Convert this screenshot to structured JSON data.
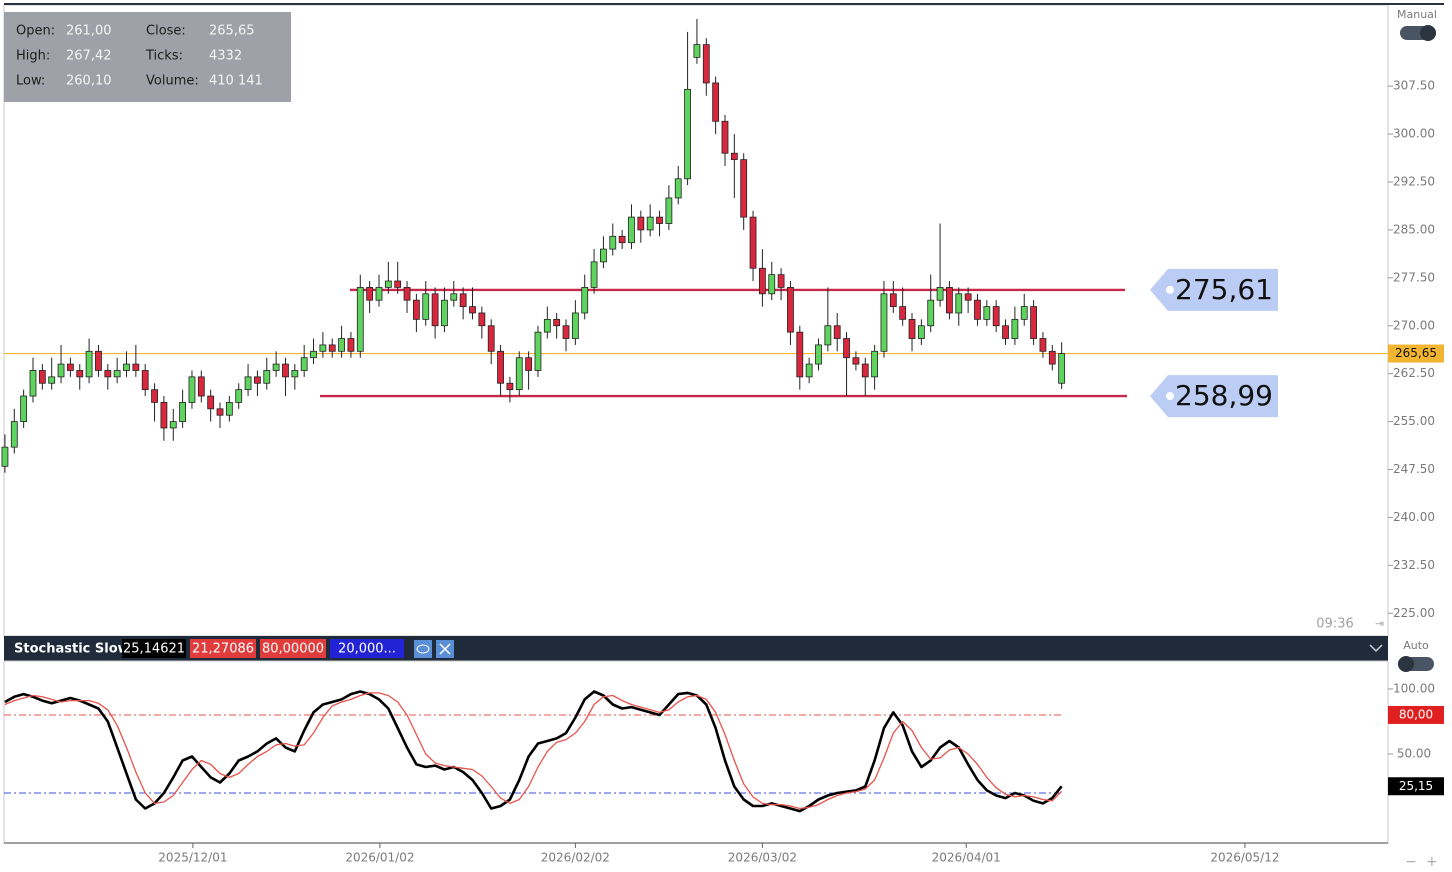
{
  "info": [
    {
      "label": "Open:",
      "value": "261,00"
    },
    {
      "label": "High:",
      "value": "267,42"
    },
    {
      "label": "Low:",
      "value": "260,10"
    },
    {
      "label": "Close:",
      "value": "265,65"
    },
    {
      "label": "Ticks:",
      "value": "4332"
    },
    {
      "label": "Volume:",
      "value": "410 141"
    }
  ],
  "price_mode": "Manual",
  "indicator_mode": "Auto",
  "time_label": "09:36",
  "chart_data": [
    {
      "type": "candlestick",
      "up_color": "#5ed35e",
      "down_color": "#d9283e",
      "xlim": [
        -0.1,
        147.9
      ],
      "ylim": [
        221.6,
        320.2
      ],
      "yticks": [
        {
          "value": 225,
          "label": "225.00"
        },
        {
          "value": 232.5,
          "label": "232.50"
        },
        {
          "value": 240,
          "label": "240.00"
        },
        {
          "value": 247.5,
          "label": "247.50"
        },
        {
          "value": 255,
          "label": "255.00"
        },
        {
          "value": 262.5,
          "label": "262.50"
        },
        {
          "value": 270,
          "label": "270.00"
        },
        {
          "value": 277.5,
          "label": "277.50"
        },
        {
          "value": 285,
          "label": "285.00"
        },
        {
          "value": 292.5,
          "label": "292.50"
        },
        {
          "value": 300,
          "label": "300.00"
        },
        {
          "value": 307.5,
          "label": "307.50"
        }
      ],
      "levels": [
        {
          "value": 275.61,
          "label": "275,61",
          "color": "#c8284a"
        },
        {
          "value": 258.99,
          "label": "258,99",
          "color": "#c8284a"
        }
      ],
      "last_price": {
        "value": 265.65,
        "label": "265,65",
        "color": "#f2b531"
      },
      "candles": [
        [
          248,
          253,
          247,
          251
        ],
        [
          251,
          257,
          250,
          255
        ],
        [
          255,
          260,
          254,
          259
        ],
        [
          259,
          265,
          258,
          263
        ],
        [
          263,
          264,
          260,
          261
        ],
        [
          261,
          265,
          260,
          262
        ],
        [
          262,
          267,
          261,
          264
        ],
        [
          264,
          265,
          262,
          263
        ],
        [
          263,
          264,
          260,
          262
        ],
        [
          262,
          268,
          261,
          266
        ],
        [
          266,
          267,
          262,
          263
        ],
        [
          263,
          264,
          260,
          262
        ],
        [
          262,
          265,
          261,
          263
        ],
        [
          263,
          266,
          262,
          264
        ],
        [
          264,
          267,
          262,
          263
        ],
        [
          263,
          264,
          259,
          260
        ],
        [
          260,
          261,
          255,
          258
        ],
        [
          258,
          259,
          252,
          254
        ],
        [
          254,
          257,
          252,
          255
        ],
        [
          255,
          260,
          254,
          258
        ],
        [
          258,
          263,
          257,
          262
        ],
        [
          262,
          263,
          258,
          259
        ],
        [
          259,
          260,
          255,
          257
        ],
        [
          257,
          258,
          254,
          256
        ],
        [
          256,
          259,
          255,
          258
        ],
        [
          258,
          261,
          257,
          260
        ],
        [
          260,
          264,
          259,
          262
        ],
        [
          262,
          263,
          259,
          261
        ],
        [
          261,
          265,
          260,
          263
        ],
        [
          263,
          266,
          262,
          264
        ],
        [
          264,
          265,
          259,
          262
        ],
        [
          262,
          264,
          260,
          263
        ],
        [
          263,
          267,
          262,
          265
        ],
        [
          265,
          268,
          264,
          266
        ],
        [
          266,
          269,
          265,
          267
        ],
        [
          267,
          268,
          265,
          266
        ],
        [
          266,
          270,
          265,
          268
        ],
        [
          268,
          269,
          265,
          266
        ],
        [
          266,
          278,
          265,
          276
        ],
        [
          276,
          277,
          272,
          274
        ],
        [
          274,
          278,
          273,
          276
        ],
        [
          276,
          280,
          275,
          277
        ],
        [
          277,
          280,
          275,
          276
        ],
        [
          276,
          277,
          272,
          274
        ],
        [
          274,
          275,
          269,
          271
        ],
        [
          271,
          277,
          270,
          275
        ],
        [
          275,
          276,
          268,
          270
        ],
        [
          270,
          276,
          269,
          274
        ],
        [
          274,
          277,
          273,
          275
        ],
        [
          275,
          276,
          271,
          273
        ],
        [
          273,
          276,
          271,
          272
        ],
        [
          272,
          273,
          268,
          270
        ],
        [
          270,
          271,
          264,
          266
        ],
        [
          266,
          267,
          259,
          261
        ],
        [
          261,
          262,
          258,
          260
        ],
        [
          260,
          266,
          259,
          265
        ],
        [
          265,
          266,
          260,
          263
        ],
        [
          263,
          270,
          262,
          269
        ],
        [
          269,
          273,
          268,
          271
        ],
        [
          271,
          272,
          268,
          270
        ],
        [
          270,
          271,
          266,
          268
        ],
        [
          268,
          274,
          267,
          272
        ],
        [
          272,
          278,
          271,
          276
        ],
        [
          276,
          282,
          275,
          280
        ],
        [
          280,
          284,
          279,
          282
        ],
        [
          282,
          286,
          281,
          284
        ],
        [
          284,
          285,
          282,
          283
        ],
        [
          283,
          289,
          282,
          287
        ],
        [
          287,
          288,
          283,
          285
        ],
        [
          285,
          289,
          284,
          287
        ],
        [
          287,
          288,
          284,
          286
        ],
        [
          286,
          292,
          285,
          290
        ],
        [
          290,
          295,
          289,
          293
        ],
        [
          293,
          316,
          292,
          307
        ],
        [
          312,
          318,
          311,
          314
        ],
        [
          314,
          315,
          306,
          308
        ],
        [
          308,
          309,
          300,
          302
        ],
        [
          302,
          303,
          295,
          297
        ],
        [
          297,
          300,
          290,
          296
        ],
        [
          296,
          297,
          285,
          287
        ],
        [
          287,
          288,
          277,
          279
        ],
        [
          279,
          282,
          273,
          275
        ],
        [
          275,
          280,
          274,
          278
        ],
        [
          278,
          279,
          274,
          276
        ],
        [
          276,
          277,
          267,
          269
        ],
        [
          269,
          270,
          260,
          262
        ],
        [
          262,
          265,
          261,
          264
        ],
        [
          264,
          268,
          263,
          267
        ],
        [
          267,
          276,
          266,
          270
        ],
        [
          270,
          272,
          266,
          268
        ],
        [
          268,
          269,
          259,
          265
        ],
        [
          265,
          266,
          263,
          264
        ],
        [
          264,
          265,
          259,
          262
        ],
        [
          262,
          267,
          260,
          266
        ],
        [
          266,
          277,
          265,
          275
        ],
        [
          275,
          277,
          272,
          273
        ],
        [
          273,
          276,
          270,
          271
        ],
        [
          271,
          272,
          266,
          268
        ],
        [
          268,
          271,
          267,
          270
        ],
        [
          270,
          278,
          269,
          274
        ],
        [
          274,
          286,
          273,
          276
        ],
        [
          276,
          277,
          271,
          272
        ],
        [
          272,
          276,
          270,
          275
        ],
        [
          275,
          276,
          272,
          274
        ],
        [
          274,
          275,
          270,
          271
        ],
        [
          271,
          274,
          270,
          273
        ],
        [
          273,
          274,
          269,
          270
        ],
        [
          270,
          271,
          267,
          268
        ],
        [
          268,
          273,
          267,
          271
        ],
        [
          271,
          275,
          270,
          273
        ],
        [
          273,
          274,
          267,
          268
        ],
        [
          268,
          269,
          265,
          266
        ],
        [
          266,
          267,
          263,
          264
        ],
        [
          261,
          267.42,
          260.1,
          265.65
        ]
      ]
    },
    {
      "type": "line",
      "title": "Stochastic Slow",
      "header_values": [
        {
          "text": "25,14621",
          "color": "#000000"
        },
        {
          "text": "21,27086",
          "color": "#e03c3c"
        },
        {
          "text": "80,00000",
          "color": "#e03c3c"
        },
        {
          "text": "20,000...",
          "color": "#2323d6"
        }
      ],
      "xlim": [
        -0.1,
        147.9
      ],
      "ylim": [
        -18.5,
        121.5
      ],
      "yticks": [
        {
          "value": 100,
          "label": "100.00"
        },
        {
          "value": 50,
          "label": "50.00"
        }
      ],
      "xticks": [
        {
          "value": 20.1,
          "label": "2025/12/01"
        },
        {
          "value": 40.1,
          "label": "2026/01/02"
        },
        {
          "value": 61,
          "label": "2026/02/02"
        },
        {
          "value": 81,
          "label": "2026/03/02"
        },
        {
          "value": 102.8,
          "label": "2026/04/01"
        },
        {
          "value": 132.6,
          "label": "2026/05/12"
        }
      ],
      "levels": [
        {
          "value": 80,
          "color": "#e8534b"
        },
        {
          "value": 20,
          "color": "#3b4fe0"
        }
      ],
      "tags": [
        {
          "value": 80,
          "label": "80,00",
          "color": "#e02020"
        },
        {
          "value": 25.15,
          "label": "25,15",
          "color": "#000000"
        }
      ],
      "series": [
        {
          "color": "#000000",
          "width": 2.6,
          "values": [
            90,
            94,
            96,
            94,
            91,
            89,
            91,
            93,
            91,
            88,
            85,
            75,
            55,
            35,
            15,
            8,
            12,
            20,
            32,
            45,
            48,
            40,
            32,
            28,
            35,
            45,
            48,
            52,
            58,
            62,
            55,
            52,
            68,
            82,
            88,
            90,
            92,
            96,
            98,
            96,
            92,
            85,
            70,
            55,
            42,
            40,
            41,
            38,
            40,
            36,
            30,
            20,
            8,
            10,
            15,
            30,
            48,
            58,
            60,
            62,
            66,
            78,
            92,
            98,
            95,
            88,
            85,
            86,
            84,
            82,
            80,
            88,
            96,
            97,
            95,
            88,
            70,
            45,
            25,
            15,
            10,
            10,
            12,
            10,
            8,
            6,
            10,
            15,
            18,
            20,
            21,
            22,
            25,
            45,
            70,
            82,
            72,
            52,
            40,
            45,
            55,
            60,
            55,
            42,
            30,
            22,
            18,
            16,
            20,
            18,
            14,
            12,
            16,
            25.14621
          ]
        },
        {
          "color": "#e8534b",
          "width": 1.3,
          "values": [
            88,
            91,
            93,
            95,
            94,
            92,
            90,
            91,
            91,
            91,
            89,
            84,
            72,
            55,
            36,
            20,
            12,
            13,
            18,
            28,
            38,
            45,
            42,
            35,
            32,
            35,
            42,
            48,
            52,
            57,
            58,
            56,
            57,
            66,
            78,
            87,
            90,
            92,
            95,
            97,
            97,
            95,
            90,
            80,
            65,
            50,
            43,
            41,
            40,
            39,
            38,
            33,
            25,
            16,
            12,
            15,
            25,
            40,
            52,
            59,
            61,
            66,
            75,
            88,
            94,
            95,
            91,
            88,
            86,
            84,
            82,
            84,
            90,
            94,
            95,
            92,
            82,
            65,
            45,
            27,
            17,
            12,
            11,
            11,
            10,
            8,
            9,
            11,
            15,
            18,
            20,
            21,
            23,
            30,
            47,
            66,
            75,
            68,
            55,
            46,
            47,
            53,
            55,
            50,
            42,
            32,
            24,
            19,
            17,
            18,
            17,
            15,
            14,
            21.27086
          ]
        }
      ]
    }
  ]
}
